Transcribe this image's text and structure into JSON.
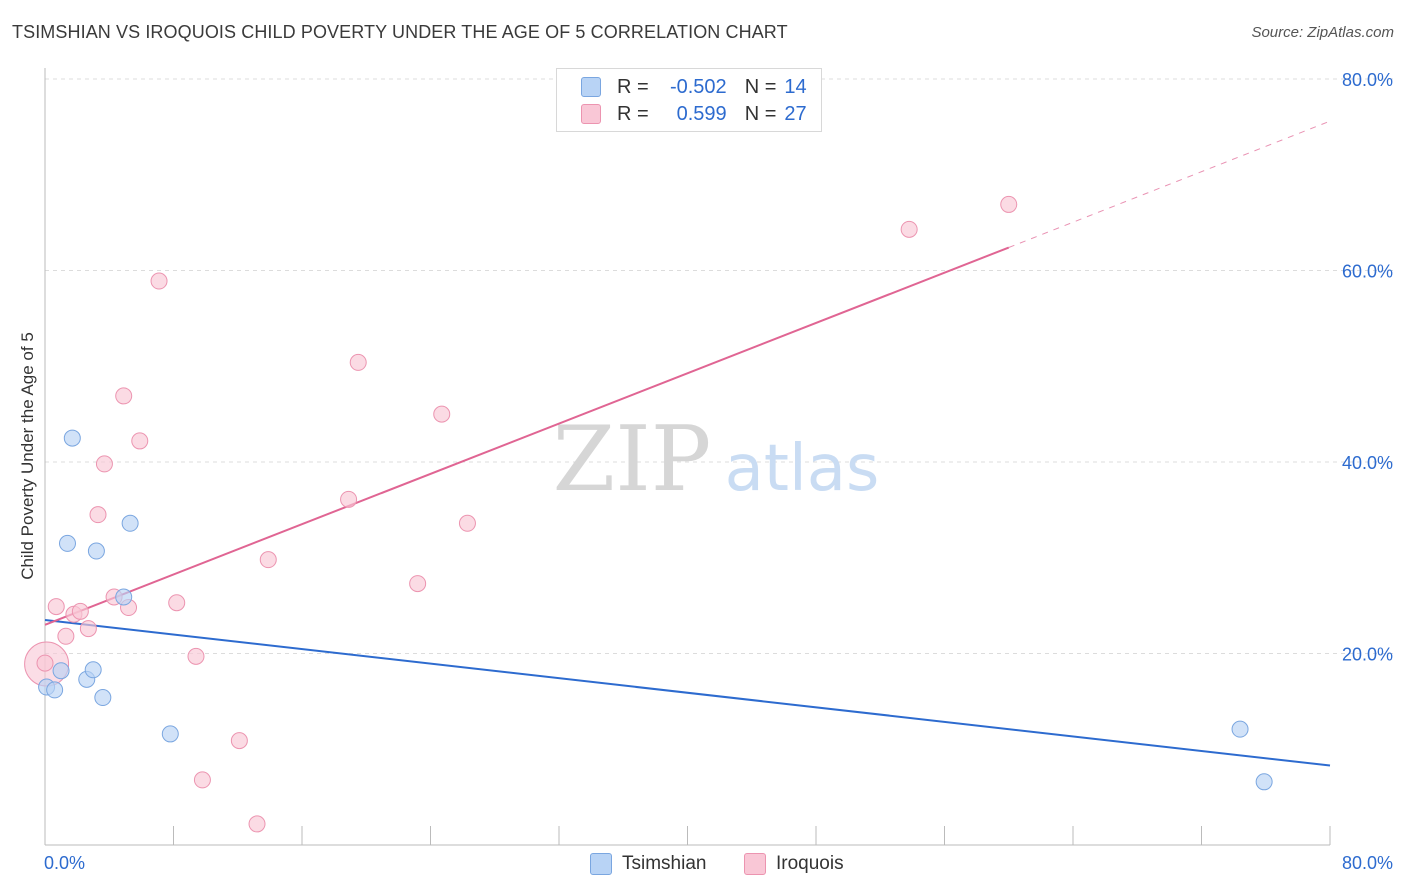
{
  "header": {
    "title": "TSIMSHIAN VS IROQUOIS CHILD POVERTY UNDER THE AGE OF 5 CORRELATION CHART",
    "source": "Source: ZipAtlas.com"
  },
  "watermark": {
    "zip": "ZIP",
    "atlas": "atlas"
  },
  "legend": {
    "rows": [
      {
        "r_label": "R =",
        "r_value": "-0.502",
        "n_label": "N =",
        "n_value": "14",
        "fill": "#b8d3f5",
        "stroke": "#7aa6e0"
      },
      {
        "r_label": "R =",
        "r_value": "0.599",
        "n_label": "N =",
        "n_value": "27",
        "fill": "#f9c7d6",
        "stroke": "#ec94b0"
      }
    ]
  },
  "bottom_legend": [
    {
      "label": "Tsimshian",
      "fill": "#b8d3f5",
      "stroke": "#7aa6e0"
    },
    {
      "label": "Iroquois",
      "fill": "#f9c7d6",
      "stroke": "#ec94b0"
    }
  ],
  "chart_data": {
    "type": "scatter",
    "title": "TSIMSHIAN VS IROQUOIS CHILD POVERTY UNDER THE AGE OF 5 CORRELATION CHART",
    "xlabel": "",
    "ylabel": "Child Poverty Under the Age of 5",
    "xlim": [
      0,
      80
    ],
    "ylim": [
      0,
      80
    ],
    "x_tick_labels": [
      "0.0%",
      "80.0%"
    ],
    "y_ticks": [
      20,
      40,
      60,
      80
    ],
    "y_tick_labels": [
      "20.0%",
      "40.0%",
      "60.0%",
      "80.0%"
    ],
    "grid": true,
    "series": [
      {
        "name": "Tsimshian",
        "color": "#2d6bcf",
        "point_fill": "#b8d3f5",
        "point_stroke": "#7aa6e0",
        "points": [
          [
            0.1,
            16.5
          ],
          [
            0.6,
            16.2
          ],
          [
            1.0,
            18.2
          ],
          [
            1.4,
            31.5
          ],
          [
            1.7,
            42.5
          ],
          [
            2.6,
            17.3
          ],
          [
            3.0,
            18.3
          ],
          [
            3.2,
            30.7
          ],
          [
            3.6,
            15.4
          ],
          [
            4.9,
            25.9
          ],
          [
            5.3,
            33.6
          ],
          [
            7.8,
            11.6
          ],
          [
            74.4,
            12.1
          ],
          [
            75.9,
            6.6
          ]
        ],
        "trend": {
          "x1": 0,
          "y1": 23.5,
          "x2": 80,
          "y2": 8.3
        }
      },
      {
        "name": "Iroquois",
        "color": "#e06593",
        "point_fill": "#f9c7d6",
        "point_stroke": "#ec94b0",
        "points": [
          [
            0.0,
            19.0
          ],
          [
            0.7,
            24.9
          ],
          [
            1.3,
            21.8
          ],
          [
            1.8,
            24.1
          ],
          [
            2.2,
            24.4
          ],
          [
            2.7,
            22.6
          ],
          [
            3.3,
            34.5
          ],
          [
            3.7,
            39.8
          ],
          [
            4.3,
            25.9
          ],
          [
            4.9,
            46.9
          ],
          [
            5.2,
            24.8
          ],
          [
            5.9,
            42.2
          ],
          [
            7.1,
            58.9
          ],
          [
            8.2,
            25.3
          ],
          [
            9.4,
            19.7
          ],
          [
            9.8,
            6.8
          ],
          [
            12.1,
            10.9
          ],
          [
            13.2,
            2.2
          ],
          [
            13.9,
            29.8
          ],
          [
            18.9,
            36.1
          ],
          [
            19.5,
            50.4
          ],
          [
            23.2,
            27.3
          ],
          [
            24.7,
            45.0
          ],
          [
            26.3,
            33.6
          ],
          [
            53.8,
            64.3
          ],
          [
            60.0,
            66.9
          ]
        ],
        "bubble": {
          "x": 0.1,
          "y": 18.9
        },
        "trend": {
          "x1": 0,
          "y1": 23.0,
          "x2": 60,
          "y2": 62.4,
          "dashed_to_x": 80,
          "dashed_to_y": 75.6
        }
      }
    ]
  }
}
